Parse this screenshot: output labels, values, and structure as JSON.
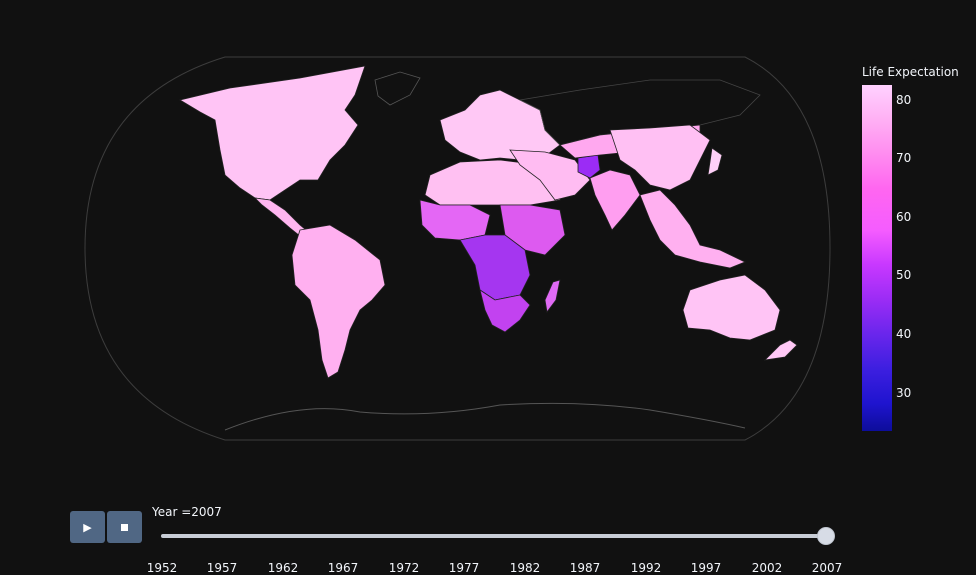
{
  "colorbar": {
    "title": "Life Expectation",
    "ticks": [
      "80",
      "70",
      "60",
      "50",
      "40",
      "30"
    ],
    "range": [
      23.6,
      82.6
    ]
  },
  "controls": {
    "play_icon": "play-icon",
    "stop_icon": "stop-icon"
  },
  "slider": {
    "prefix": "Year =",
    "current": "2007",
    "label": "Year =2007",
    "steps": [
      "1952",
      "1957",
      "1962",
      "1967",
      "1972",
      "1977",
      "1982",
      "1987",
      "1992",
      "1997",
      "2002",
      "2007"
    ]
  },
  "map": {
    "projection": "natural earth",
    "background": "#111111",
    "regions": [
      {
        "name": "North America",
        "level": "80"
      },
      {
        "name": "South America",
        "level": "74"
      },
      {
        "name": "Europe",
        "level": "79"
      },
      {
        "name": "North Africa",
        "level": "72"
      },
      {
        "name": "West Africa",
        "level": "57"
      },
      {
        "name": "Central Africa",
        "level": "50"
      },
      {
        "name": "East Africa",
        "level": "54"
      },
      {
        "name": "Southern Africa",
        "level": "45"
      },
      {
        "name": "Middle East",
        "level": "73"
      },
      {
        "name": "Russia and Central Asia",
        "level": "68"
      },
      {
        "name": "Afghanistan",
        "level": "44"
      },
      {
        "name": "South Asia",
        "level": "65"
      },
      {
        "name": "East Asia",
        "level": "74"
      },
      {
        "name": "Southeast Asia",
        "level": "70"
      },
      {
        "name": "Australia",
        "level": "81"
      },
      {
        "name": "Madagascar",
        "level": "60"
      }
    ]
  }
}
